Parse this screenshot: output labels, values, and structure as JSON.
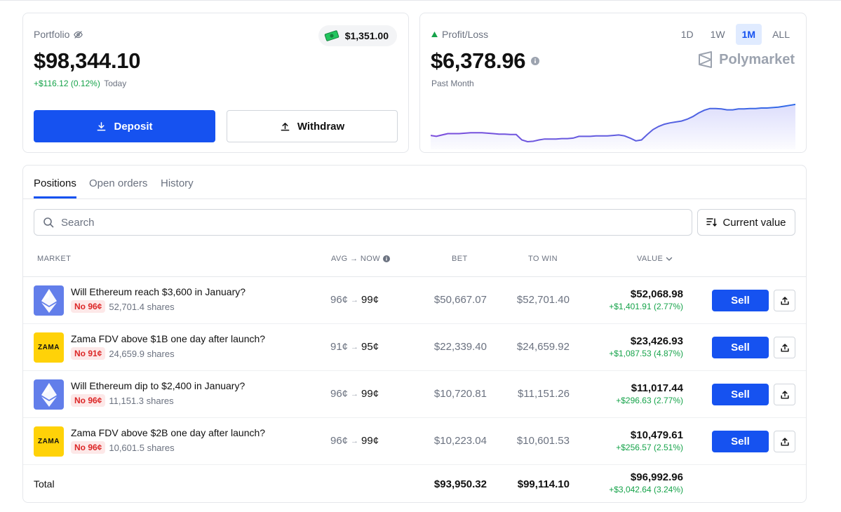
{
  "portfolio": {
    "label": "Portfolio",
    "value": "$98,344.10",
    "change": "+$116.12 (0.12%)",
    "change_period": "Today",
    "cash": "$1,351.00",
    "deposit_label": "Deposit",
    "withdraw_label": "Withdraw"
  },
  "pnl": {
    "label": "Profit/Loss",
    "value": "$6,378.96",
    "period_label": "Past Month",
    "brand": "Polymarket",
    "ranges": [
      "1D",
      "1W",
      "1M",
      "ALL"
    ],
    "active_range": "1M",
    "series": [
      0.72,
      0.74,
      0.71,
      0.68,
      0.68,
      0.68,
      0.67,
      0.66,
      0.66,
      0.66,
      0.67,
      0.68,
      0.69,
      0.69,
      0.7,
      0.7,
      0.82,
      0.86,
      0.85,
      0.82,
      0.8,
      0.8,
      0.8,
      0.79,
      0.79,
      0.78,
      0.74,
      0.74,
      0.74,
      0.73,
      0.73,
      0.73,
      0.72,
      0.71,
      0.73,
      0.78,
      0.84,
      0.82,
      0.7,
      0.59,
      0.52,
      0.47,
      0.44,
      0.42,
      0.4,
      0.36,
      0.3,
      0.22,
      0.16,
      0.12,
      0.12,
      0.13,
      0.15,
      0.15,
      0.13,
      0.13,
      0.12,
      0.12,
      0.11,
      0.11,
      0.1,
      0.09,
      0.07,
      0.05,
      0.03
    ]
  },
  "tabs": [
    "Positions",
    "Open orders",
    "History"
  ],
  "search": {
    "placeholder": "Search"
  },
  "sort": {
    "label": "Current value"
  },
  "columns": {
    "market": "MARKET",
    "avg_now": "AVG → NOW",
    "bet": "BET",
    "to_win": "TO WIN",
    "value": "VALUE"
  },
  "positions": [
    {
      "icon": "ethereum-icon",
      "title": "Will Ethereum reach $3,600 in January?",
      "outcome": "No 96¢",
      "shares": "52,701.4 shares",
      "avg": "96¢",
      "now": "99¢",
      "bet": "$50,667.07",
      "to_win": "$52,701.40",
      "value": "$52,068.98",
      "change": "+$1,401.91 (2.77%)",
      "sell_label": "Sell"
    },
    {
      "icon": "zama-logo",
      "icon_text": "ZAMA",
      "title": "Zama FDV above $1B one day after launch?",
      "outcome": "No 91¢",
      "shares": "24,659.9 shares",
      "avg": "91¢",
      "now": "95¢",
      "bet": "$22,339.40",
      "to_win": "$24,659.92",
      "value": "$23,426.93",
      "change": "+$1,087.53 (4.87%)",
      "sell_label": "Sell"
    },
    {
      "icon": "ethereum-icon",
      "title": "Will Ethereum dip to $2,400 in January?",
      "outcome": "No 96¢",
      "shares": "11,151.3 shares",
      "avg": "96¢",
      "now": "99¢",
      "bet": "$10,720.81",
      "to_win": "$11,151.26",
      "value": "$11,017.44",
      "change": "+$296.63 (2.77%)",
      "sell_label": "Sell"
    },
    {
      "icon": "zama-logo",
      "icon_text": "ZAMA",
      "title": "Zama FDV above $2B one day after launch?",
      "outcome": "No 96¢",
      "shares": "10,601.5 shares",
      "avg": "96¢",
      "now": "99¢",
      "bet": "$10,223.04",
      "to_win": "$10,601.53",
      "value": "$10,479.61",
      "change": "+$256.57 (2.51%)",
      "sell_label": "Sell"
    }
  ],
  "total": {
    "label": "Total",
    "bet": "$93,950.32",
    "to_win": "$99,114.10",
    "value": "$96,992.96",
    "change": "+$3,042.64 (3.24%)"
  },
  "colors": {
    "accent": "#1652f0",
    "positive": "#16a34a",
    "negative_badge": "#dc2626",
    "chart_line": "#6d5fe0"
  }
}
